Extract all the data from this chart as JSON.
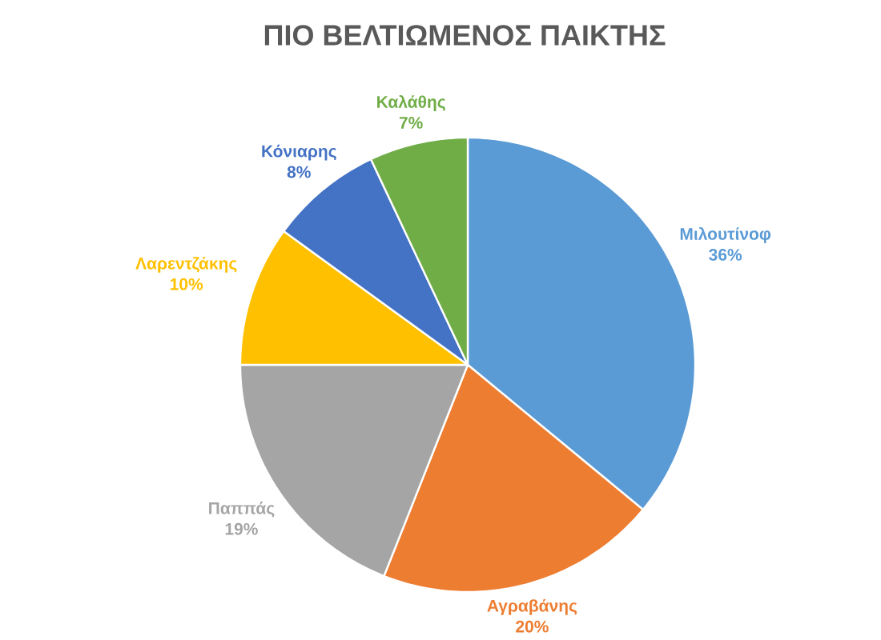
{
  "chart_data": {
    "type": "pie",
    "title": "ΠΙΟ ΒΕΛΤΙΩΜΕΝΟΣ  ΠΑΙΚΤΗΣ",
    "categories": [
      "Μιλουτίνοφ",
      "Αγραβάνης",
      "Παππάς",
      "Λαρεντζάκης",
      "Κόνιαρης",
      "Καλάθης"
    ],
    "values": [
      36,
      20,
      19,
      10,
      8,
      7
    ],
    "value_labels": [
      "36%",
      "20%",
      "19%",
      "10%",
      "8%",
      "7%"
    ],
    "colors": [
      "#5b9bd5",
      "#ed7d31",
      "#a5a5a5",
      "#ffc000",
      "#4472c4",
      "#70ad47"
    ]
  }
}
